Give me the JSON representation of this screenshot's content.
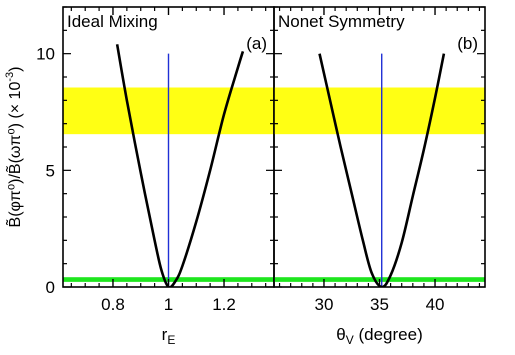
{
  "colors": {
    "band_yellow": "#ffff14",
    "band_green": "#1ee61e",
    "vline": "#1f2fd6",
    "curve": "#000000",
    "frame": "#000000"
  },
  "y_axis": {
    "label_main": "B̃(φπ⁰)/B̃(ωπ⁰) (× 10",
    "label_exp": "-3",
    "label_close": ")",
    "range": [
      0,
      12
    ],
    "major_ticks": [
      0,
      5,
      10
    ],
    "tick_labels": [
      "0",
      "5",
      "10"
    ],
    "minor_step": 1
  },
  "chart_data": [
    {
      "type": "line",
      "title": "Ideal Mixing",
      "panel_tag": "(a)",
      "xlabel_main": "r",
      "xlabel_sub": "E",
      "xlim": [
        0.62,
        1.38
      ],
      "major_ticks": [
        0.8,
        1.0,
        1.2
      ],
      "tick_labels": [
        "0.8",
        "1",
        "1.2"
      ],
      "minor_step": 0.05,
      "bands": [
        {
          "color": "yellow",
          "y": [
            6.55,
            8.55
          ]
        },
        {
          "color": "green",
          "y": [
            0.22,
            0.42
          ]
        }
      ],
      "vline_x": 1.0,
      "curve": {
        "x": [
          0.815,
          0.85,
          0.9,
          0.95,
          0.975,
          1.0,
          1.025,
          1.05,
          1.1,
          1.15,
          1.2,
          1.25,
          1.268
        ],
        "y": [
          10.4,
          8.0,
          4.9,
          2.0,
          0.7,
          0.0,
          0.25,
          0.9,
          2.8,
          5.0,
          7.4,
          9.4,
          10.1
        ]
      }
    },
    {
      "type": "line",
      "title": "Nonet Symmetry",
      "panel_tag": "(b)",
      "xlabel_main": "θ",
      "xlabel_sub": "V",
      "xlabel_rest": " (degree)",
      "xlim": [
        25.5,
        44.5
      ],
      "major_ticks": [
        30,
        35,
        40
      ],
      "tick_labels": [
        "30",
        "35",
        "40"
      ],
      "minor_step": 1,
      "bands": [
        {
          "color": "yellow",
          "y": [
            6.55,
            8.55
          ]
        },
        {
          "color": "green",
          "y": [
            0.22,
            0.42
          ]
        }
      ],
      "vline_x": 35.2,
      "curve": {
        "x": [
          29.6,
          30.5,
          31.5,
          32.5,
          33.5,
          34.3,
          35.2,
          36.0,
          37.0,
          38.0,
          39.0,
          40.0,
          40.8
        ],
        "y": [
          10.0,
          8.1,
          6.0,
          4.0,
          2.0,
          0.6,
          0.0,
          0.5,
          1.9,
          3.9,
          5.9,
          8.1,
          10.0
        ]
      }
    }
  ]
}
